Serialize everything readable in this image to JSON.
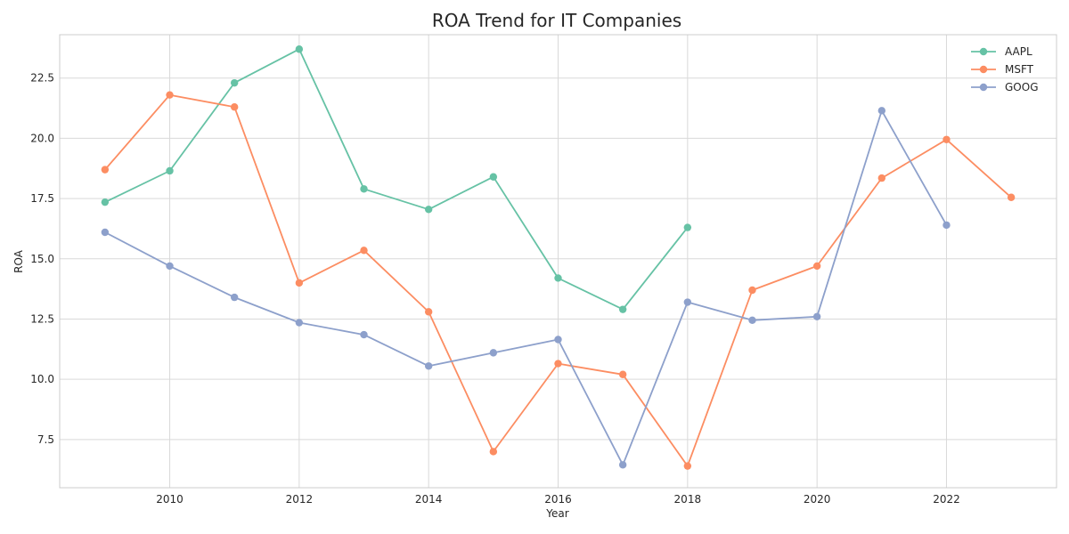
{
  "chart_data": {
    "type": "line",
    "title": "ROA Trend for IT Companies",
    "xlabel": "Year",
    "ylabel": "ROA",
    "xlim": [
      2008.3,
      2023.7
    ],
    "ylim": [
      5.5,
      24.3
    ],
    "xticks": [
      2010,
      2012,
      2014,
      2016,
      2018,
      2020,
      2022
    ],
    "yticks": [
      7.5,
      10.0,
      12.5,
      15.0,
      17.5,
      20.0,
      22.5
    ],
    "grid": true,
    "legend_position": "top-right",
    "series": [
      {
        "name": "AAPL",
        "color": "#66c2a5",
        "x": [
          2009,
          2010,
          2011,
          2012,
          2013,
          2014,
          2015,
          2016,
          2017,
          2018
        ],
        "values": [
          17.35,
          18.65,
          22.3,
          23.7,
          17.9,
          17.05,
          18.4,
          14.2,
          12.9,
          16.3
        ]
      },
      {
        "name": "MSFT",
        "color": "#fc8d62",
        "x": [
          2009,
          2010,
          2011,
          2012,
          2013,
          2014,
          2015,
          2016,
          2017,
          2018,
          2019,
          2020,
          2021,
          2022,
          2023
        ],
        "values": [
          18.7,
          21.8,
          21.3,
          14.0,
          15.35,
          12.8,
          7.0,
          10.65,
          10.2,
          6.4,
          13.7,
          14.7,
          18.35,
          19.95,
          17.55
        ]
      },
      {
        "name": "GOOG",
        "color": "#8da0cb",
        "x": [
          2009,
          2010,
          2011,
          2012,
          2013,
          2014,
          2015,
          2016,
          2017,
          2018,
          2019,
          2020,
          2021,
          2022
        ],
        "values": [
          16.1,
          14.7,
          13.4,
          12.35,
          11.85,
          10.55,
          11.1,
          11.65,
          6.45,
          13.2,
          12.45,
          12.6,
          21.15,
          16.4
        ]
      }
    ]
  }
}
